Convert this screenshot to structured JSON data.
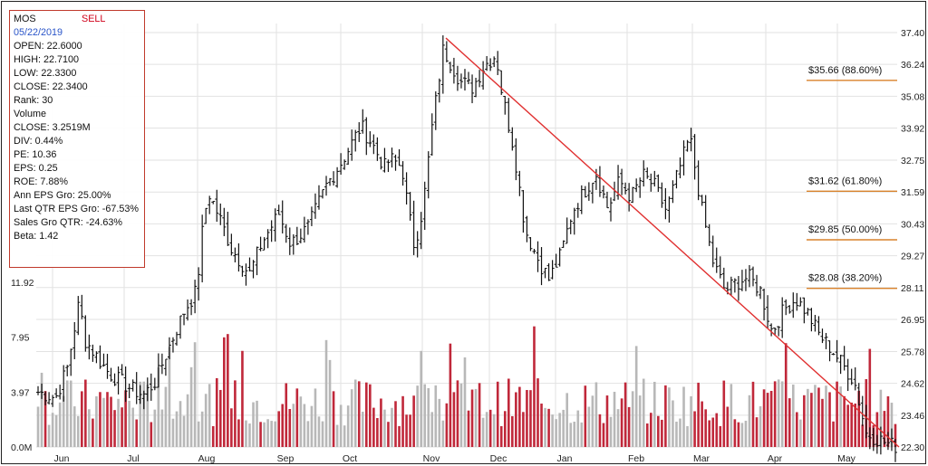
{
  "info_panel": {
    "ticker": "MOS",
    "signal": "SELL",
    "date": "05/22/2019",
    "rows": [
      "OPEN: 22.6000",
      "HIGH: 22.7100",
      "LOW: 22.3300",
      "CLOSE: 22.3400",
      "Rank: 30",
      "Volume",
      "CLOSE: 3.2519M",
      "DIV: 0.44%",
      "PE: 10.36",
      "EPS: 0.25",
      "ROE: 7.88%",
      "Ann EPS Gro: 25.00%",
      "Last QTR EPS Gro: -67.53%",
      "Sales Gro QTR: -24.63%",
      "Beta: 1.42"
    ]
  },
  "colors": {
    "price_bars": "#111111",
    "volume_down": "#c0283a",
    "volume_up": "#b8b8b8",
    "trendline": "#e03030",
    "fib_lines": "#d9822b",
    "grid": "#e2e2e2"
  },
  "chart_data": {
    "type": "ohlc_with_volume",
    "price_axis": {
      "position": "right",
      "range": [
        22.3,
        37.4
      ],
      "ticks": [
        "37.40",
        "36.24",
        "35.08",
        "33.92",
        "32.75",
        "31.59",
        "30.43",
        "29.27",
        "28.11",
        "26.95",
        "25.78",
        "24.62",
        "23.46",
        "22.30"
      ]
    },
    "volume_axis": {
      "position": "left",
      "ticks": [
        "0.0M",
        "3.97",
        "7.95",
        "11.92"
      ]
    },
    "x_axis": {
      "months": [
        "Jun",
        "Jul",
        "Aug",
        "Sep",
        "Oct",
        "Nov",
        "Dec",
        "Jan",
        "Feb",
        "Mar",
        "Apr",
        "May"
      ]
    },
    "grid": true,
    "price_path": [
      [
        0,
        24.3
      ],
      [
        3,
        24.1
      ],
      [
        5,
        25.2
      ],
      [
        7,
        27.6
      ],
      [
        8,
        26.2
      ],
      [
        12,
        25.0
      ],
      [
        16,
        24.4
      ],
      [
        18,
        24.2
      ],
      [
        20,
        24.7
      ],
      [
        22,
        25.8
      ],
      [
        25,
        27.3
      ],
      [
        27,
        28.0
      ],
      [
        28,
        30.2
      ],
      [
        29,
        31.6
      ],
      [
        31,
        30.6
      ],
      [
        33,
        29.5
      ],
      [
        36,
        28.6
      ],
      [
        38,
        29.7
      ],
      [
        41,
        30.8
      ],
      [
        43,
        29.7
      ],
      [
        46,
        30.3
      ],
      [
        49,
        31.8
      ],
      [
        52,
        32.8
      ],
      [
        55,
        34.0
      ],
      [
        57,
        33.3
      ],
      [
        59,
        32.5
      ],
      [
        60,
        32.8
      ],
      [
        62,
        32.5
      ],
      [
        63,
        31.0
      ],
      [
        64,
        29.7
      ],
      [
        65,
        30.4
      ],
      [
        66,
        31.8
      ],
      [
        67,
        33.8
      ],
      [
        69,
        36.8
      ],
      [
        70,
        36.4
      ],
      [
        72,
        35.6
      ],
      [
        74,
        35.4
      ],
      [
        76,
        36.2
      ],
      [
        78,
        36.6
      ],
      [
        79,
        35.2
      ],
      [
        81,
        33.2
      ],
      [
        83,
        30.2
      ],
      [
        85,
        29.2
      ],
      [
        87,
        28.4
      ],
      [
        89,
        29.3
      ],
      [
        91,
        30.9
      ],
      [
        93,
        31.6
      ],
      [
        95,
        32.3
      ],
      [
        97,
        31.0
      ],
      [
        99,
        32.0
      ],
      [
        101,
        31.4
      ],
      [
        103,
        32.2
      ],
      [
        105,
        31.8
      ],
      [
        107,
        30.9
      ],
      [
        109,
        32.3
      ],
      [
        111,
        33.6
      ],
      [
        113,
        31.0
      ],
      [
        115,
        29.0
      ],
      [
        117,
        28.0
      ],
      [
        119,
        28.3
      ],
      [
        121,
        28.5
      ],
      [
        123,
        28.0
      ],
      [
        125,
        26.5
      ],
      [
        127,
        27.3
      ],
      [
        129,
        27.7
      ],
      [
        131,
        27.2
      ],
      [
        133,
        26.4
      ],
      [
        135,
        25.9
      ],
      [
        137,
        25.3
      ],
      [
        139,
        24.7
      ],
      [
        140,
        23.8
      ],
      [
        141,
        22.8
      ],
      [
        143,
        22.6
      ],
      [
        145,
        22.4
      ],
      [
        146,
        22.34
      ]
    ],
    "volume_bars": {
      "count": 236,
      "max": 11.92
    },
    "trendline": {
      "from": [
        "Nov",
        37.2
      ],
      "to": [
        "May",
        22.3
      ]
    },
    "fibonacci_levels": [
      {
        "label": "$35.66 (88.60%)",
        "value": 35.66
      },
      {
        "label": "$31.62 (61.80%)",
        "value": 31.62
      },
      {
        "label": "$29.85 (50.00%)",
        "value": 29.85
      },
      {
        "label": "$28.08 (38.20%)",
        "value": 28.08
      }
    ]
  }
}
